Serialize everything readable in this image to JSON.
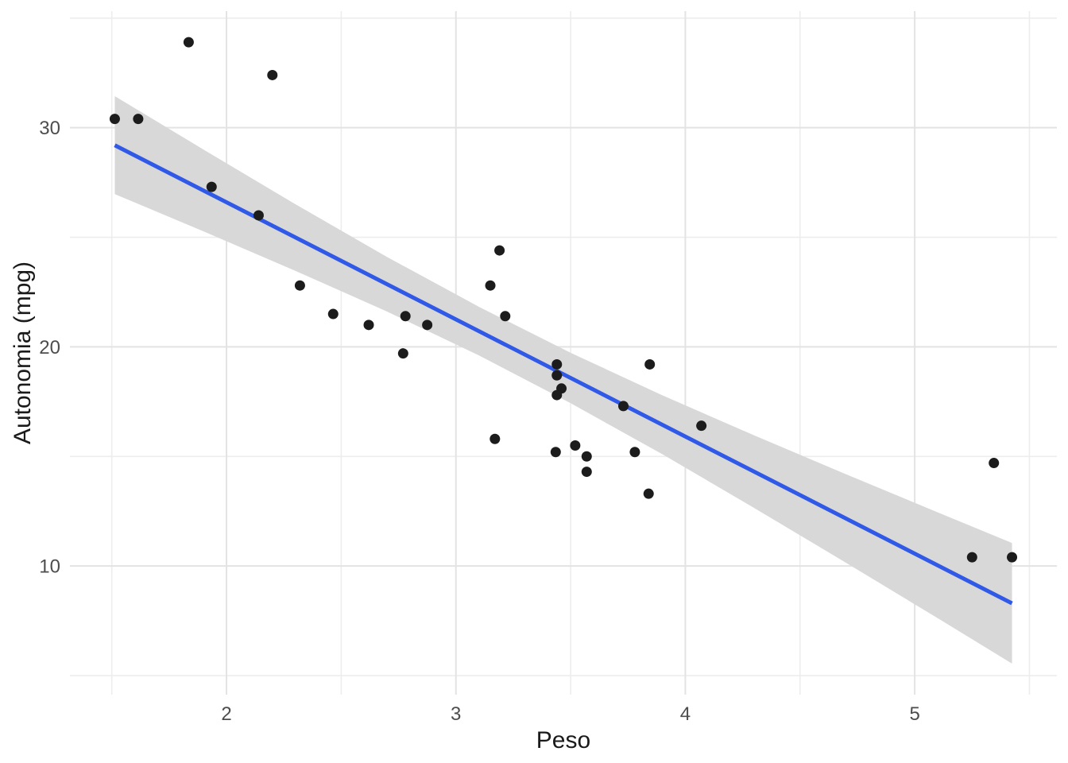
{
  "figure": {
    "description": "Scatter plot with linear regression line and confidence band",
    "background": "#FFFFFF"
  },
  "chart_data": {
    "type": "scatter",
    "title": "",
    "xlabel": "Peso",
    "ylabel": "Autonomia (mpg)",
    "legend": "none",
    "grid": "major+minor",
    "xlim": [
      1.3175,
      5.6196
    ],
    "ylim": [
      4.131,
      35.318
    ],
    "x_ticks_major": [
      2,
      3,
      4,
      5
    ],
    "x_ticks_minor": [
      1.5,
      2.5,
      3.5,
      4.5,
      5.5
    ],
    "y_ticks_major": [
      10,
      20,
      30
    ],
    "y_ticks_minor": [
      5,
      15,
      25,
      35
    ],
    "points": [
      [
        2.62,
        21.0
      ],
      [
        2.875,
        21.0
      ],
      [
        2.32,
        22.8
      ],
      [
        3.215,
        21.4
      ],
      [
        3.44,
        18.7
      ],
      [
        3.46,
        18.1
      ],
      [
        3.57,
        14.3
      ],
      [
        3.19,
        24.4
      ],
      [
        3.15,
        22.8
      ],
      [
        3.44,
        19.2
      ],
      [
        3.44,
        17.8
      ],
      [
        4.07,
        16.4
      ],
      [
        3.73,
        17.3
      ],
      [
        3.78,
        15.2
      ],
      [
        5.25,
        10.4
      ],
      [
        5.424,
        10.4
      ],
      [
        5.345,
        14.7
      ],
      [
        2.2,
        32.4
      ],
      [
        1.615,
        30.4
      ],
      [
        1.835,
        33.9
      ],
      [
        2.465,
        21.5
      ],
      [
        3.52,
        15.5
      ],
      [
        3.435,
        15.2
      ],
      [
        3.84,
        13.3
      ],
      [
        3.845,
        19.2
      ],
      [
        1.935,
        27.3
      ],
      [
        2.14,
        26.0
      ],
      [
        1.513,
        30.4
      ],
      [
        3.17,
        15.8
      ],
      [
        2.77,
        19.7
      ],
      [
        3.57,
        15.0
      ],
      [
        2.78,
        21.4
      ]
    ],
    "trend_line": {
      "model": "linear",
      "intercept": 37.285,
      "slope": -5.344,
      "x_start": 1.513,
      "x_end": 5.424
    },
    "confidence_band": {
      "x": [
        1.513,
        1.9,
        2.3,
        2.7,
        3.1,
        3.5,
        3.9,
        4.3,
        4.7,
        5.1,
        5.424
      ],
      "upper": [
        31.44,
        29.0,
        26.51,
        24.1,
        21.83,
        19.73,
        17.79,
        15.96,
        14.19,
        12.45,
        11.05
      ],
      "lower": [
        26.97,
        25.27,
        23.47,
        21.61,
        19.61,
        17.43,
        15.1,
        12.65,
        10.15,
        7.62,
        5.55
      ]
    },
    "colors": {
      "background": "#FFFFFF",
      "grid_major": "#E3E3E3",
      "grid_minor": "#EDEDED",
      "ribbon": "#D8D8D8",
      "line": "#3159E8",
      "point": "#1C1C1C",
      "tick_label": "#4D4D4D",
      "axis_title": "#1A1A1A"
    },
    "point_radius": 6.5,
    "line_width": 5
  }
}
